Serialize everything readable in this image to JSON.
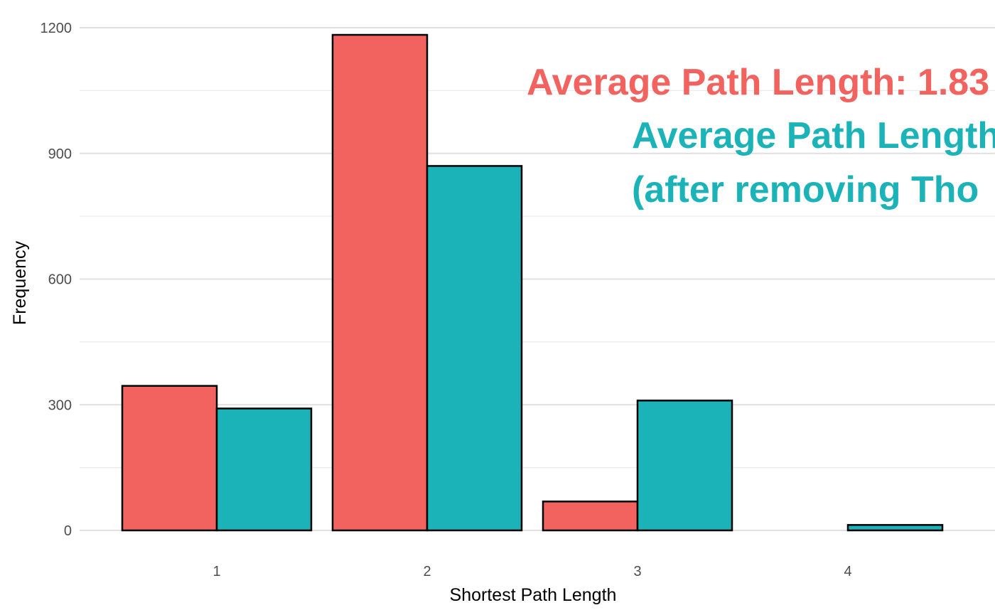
{
  "chart_data": {
    "type": "bar",
    "categories": [
      "1",
      "2",
      "3",
      "4"
    ],
    "series": [
      {
        "values": [
          345,
          1183,
          69,
          0
        ],
        "color": "#F26360"
      },
      {
        "values": [
          291,
          870,
          310,
          13
        ],
        "color": "#1BB3B8"
      }
    ],
    "xlabel": "Shortest Path Length",
    "ylabel": "Frequency",
    "ylim": [
      -70,
      1230
    ],
    "y_ticks": [
      0,
      300,
      600,
      900,
      1200
    ],
    "y_tick_labels": [
      "0",
      "300",
      "600",
      "900",
      "1200"
    ],
    "grid": true,
    "legend": "none",
    "annotations": [
      {
        "text": "Average Path Length: 1.83",
        "color": "#F26360"
      },
      {
        "text": "Average Path Length",
        "color": "#1BB3B8"
      },
      {
        "text": "(after removing Tho",
        "color": "#1BB3B8"
      }
    ]
  }
}
